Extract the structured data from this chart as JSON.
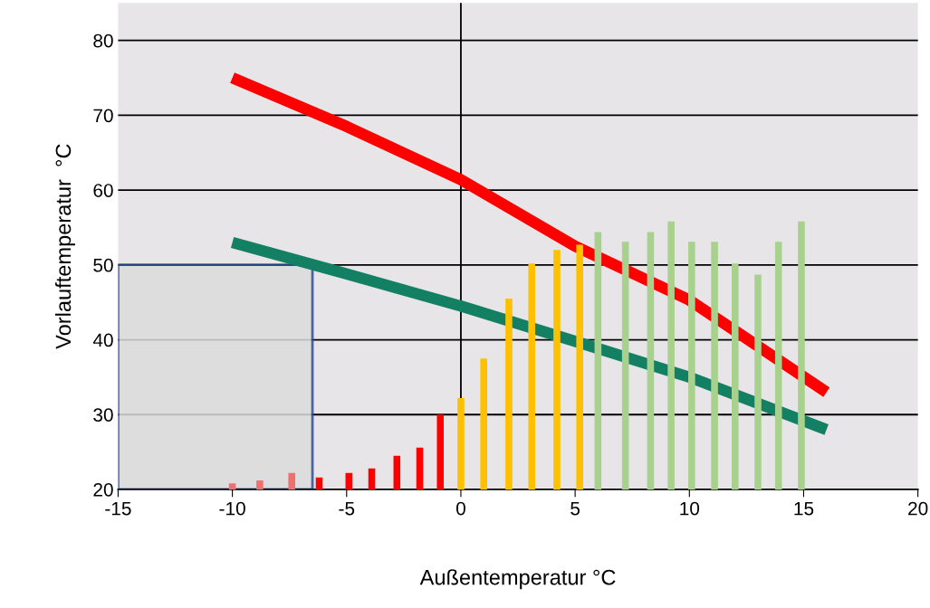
{
  "chart_data": {
    "type": "bar",
    "xlabel": "Außentemperatur °C",
    "ylabel": "Vorlauftemperatur  °C",
    "xlim": [
      -15,
      20
    ],
    "xticks": [
      -15,
      -10,
      -5,
      0,
      5,
      10,
      15,
      20
    ],
    "ylim": [
      20,
      85
    ],
    "yticks": [
      20,
      30,
      40,
      50,
      60,
      70,
      80
    ],
    "grid": "y",
    "ref_lines": [
      {
        "axis": "x",
        "value": 0,
        "color": "#000000"
      }
    ],
    "series": [
      {
        "x": [
          -10,
          -8.8,
          -7.4,
          -6.2,
          -4.9,
          -3.9,
          -2.8,
          -1.8,
          -0.9,
          0,
          1,
          2.1,
          3.1,
          4.2,
          5.2,
          6,
          7.2,
          8.3,
          9.2,
          10.1,
          11.1,
          12,
          13,
          13.9,
          14.9
        ],
        "values": [
          20.8,
          21.2,
          22.2,
          21.6,
          22.2,
          22.8,
          24.5,
          25.6,
          30,
          32.2,
          37.5,
          45.5,
          50.2,
          52,
          52.7,
          54.4,
          53.1,
          54.4,
          55.8,
          53.1,
          53.1,
          50.2,
          48.7,
          53.1,
          55.8
        ],
        "colors": [
          "#f07070",
          "#f07070",
          "#f07070",
          "#ff0000",
          "#ff0000",
          "#ff0000",
          "#ff0000",
          "#ff0000",
          "#ff0000",
          "#ffc000",
          "#ffc000",
          "#ffc000",
          "#ffc000",
          "#ffc000",
          "#ffc000",
          "#a9d18e",
          "#a9d18e",
          "#a9d18e",
          "#a9d18e",
          "#a9d18e",
          "#a9d18e",
          "#a9d18e",
          "#a9d18e",
          "#a9d18e",
          "#a9d18e"
        ]
      },
      {
        "type": "line",
        "color": "#ff0000",
        "x": [
          -10,
          -5,
          0,
          5,
          10,
          16
        ],
        "values": [
          75,
          68.5,
          61.4,
          52.5,
          45.3,
          33
        ]
      },
      {
        "type": "line",
        "color": "#138063",
        "x": [
          -10,
          -5,
          0,
          5,
          10,
          16
        ],
        "values": [
          53,
          48.8,
          44.5,
          39.8,
          35,
          28
        ]
      }
    ]
  }
}
